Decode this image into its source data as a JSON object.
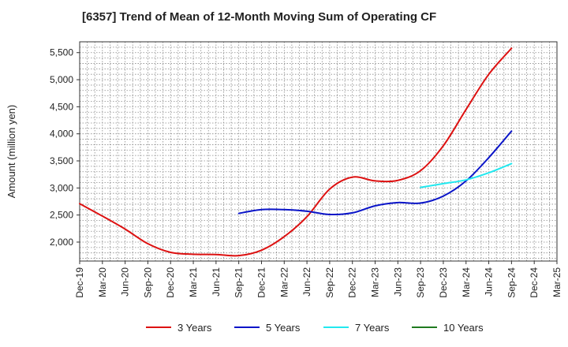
{
  "chart_data": {
    "type": "line",
    "title": "[6357]  Trend of Mean of 12-Month Moving Sum of Operating CF",
    "xlabel": "",
    "ylabel": "Amount (million yen)",
    "ylim": [
      1650,
      5700
    ],
    "yticks": [
      2000,
      2500,
      3000,
      3500,
      4000,
      4500,
      5000,
      5500
    ],
    "ytick_labels": [
      "2,000",
      "2,500",
      "3,000",
      "3,500",
      "4,000",
      "4,500",
      "5,000",
      "5,500"
    ],
    "x_categories": [
      "Dec-19",
      "Mar-20",
      "Jun-20",
      "Sep-20",
      "Dec-20",
      "Mar-21",
      "Jun-21",
      "Sep-21",
      "Dec-21",
      "Mar-22",
      "Jun-22",
      "Sep-22",
      "Dec-22",
      "Mar-23",
      "Jun-23",
      "Sep-23",
      "Dec-23",
      "Mar-24",
      "Jun-24",
      "Sep-24",
      "Dec-24",
      "Mar-25"
    ],
    "grid": true,
    "legend_position": "bottom",
    "series": [
      {
        "name": "3 Years",
        "color": "#dd1111",
        "x_index": [
          0,
          1,
          2,
          3,
          4,
          5,
          6,
          7,
          8,
          9,
          10,
          11,
          12,
          13,
          14,
          15,
          16,
          17,
          18,
          19
        ],
        "values": [
          2710,
          2480,
          2240,
          1970,
          1810,
          1775,
          1770,
          1750,
          1850,
          2100,
          2470,
          2980,
          3200,
          3130,
          3140,
          3320,
          3780,
          4450,
          5100,
          5580
        ]
      },
      {
        "name": "5 Years",
        "color": "#0a14c8",
        "x_index": [
          7,
          8,
          9,
          10,
          11,
          12,
          13,
          14,
          15,
          16,
          17,
          18,
          19
        ],
        "values": [
          2530,
          2600,
          2600,
          2570,
          2510,
          2540,
          2670,
          2730,
          2720,
          2850,
          3130,
          3560,
          4050
        ]
      },
      {
        "name": "7 Years",
        "color": "#22e8ef",
        "x_index": [
          15,
          16,
          17,
          18,
          19
        ],
        "values": [
          3010,
          3080,
          3150,
          3280,
          3450
        ]
      },
      {
        "name": "10 Years",
        "color": "#1f7a1f",
        "x_index": [],
        "values": []
      }
    ]
  }
}
